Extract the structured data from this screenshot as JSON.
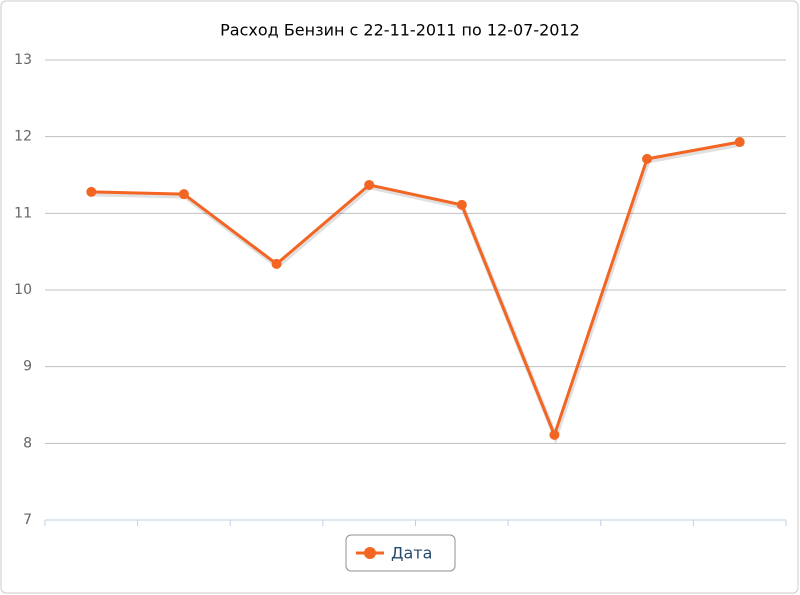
{
  "chart_data": {
    "type": "line",
    "title": "Расход Бензин с 22-11-2011 по 12-07-2012",
    "categories": [
      null,
      null,
      null,
      null,
      null,
      null,
      null,
      null
    ],
    "series": [
      {
        "name": "Дата",
        "color": "#f26522",
        "values": [
          11.28,
          11.25,
          10.34,
          11.37,
          11.11,
          8.11,
          11.71,
          11.93
        ]
      }
    ],
    "ylim": [
      7,
      13
    ],
    "yticks": [
      7,
      8,
      9,
      10,
      11,
      12,
      13
    ],
    "grid": true,
    "legend": "bottom"
  }
}
